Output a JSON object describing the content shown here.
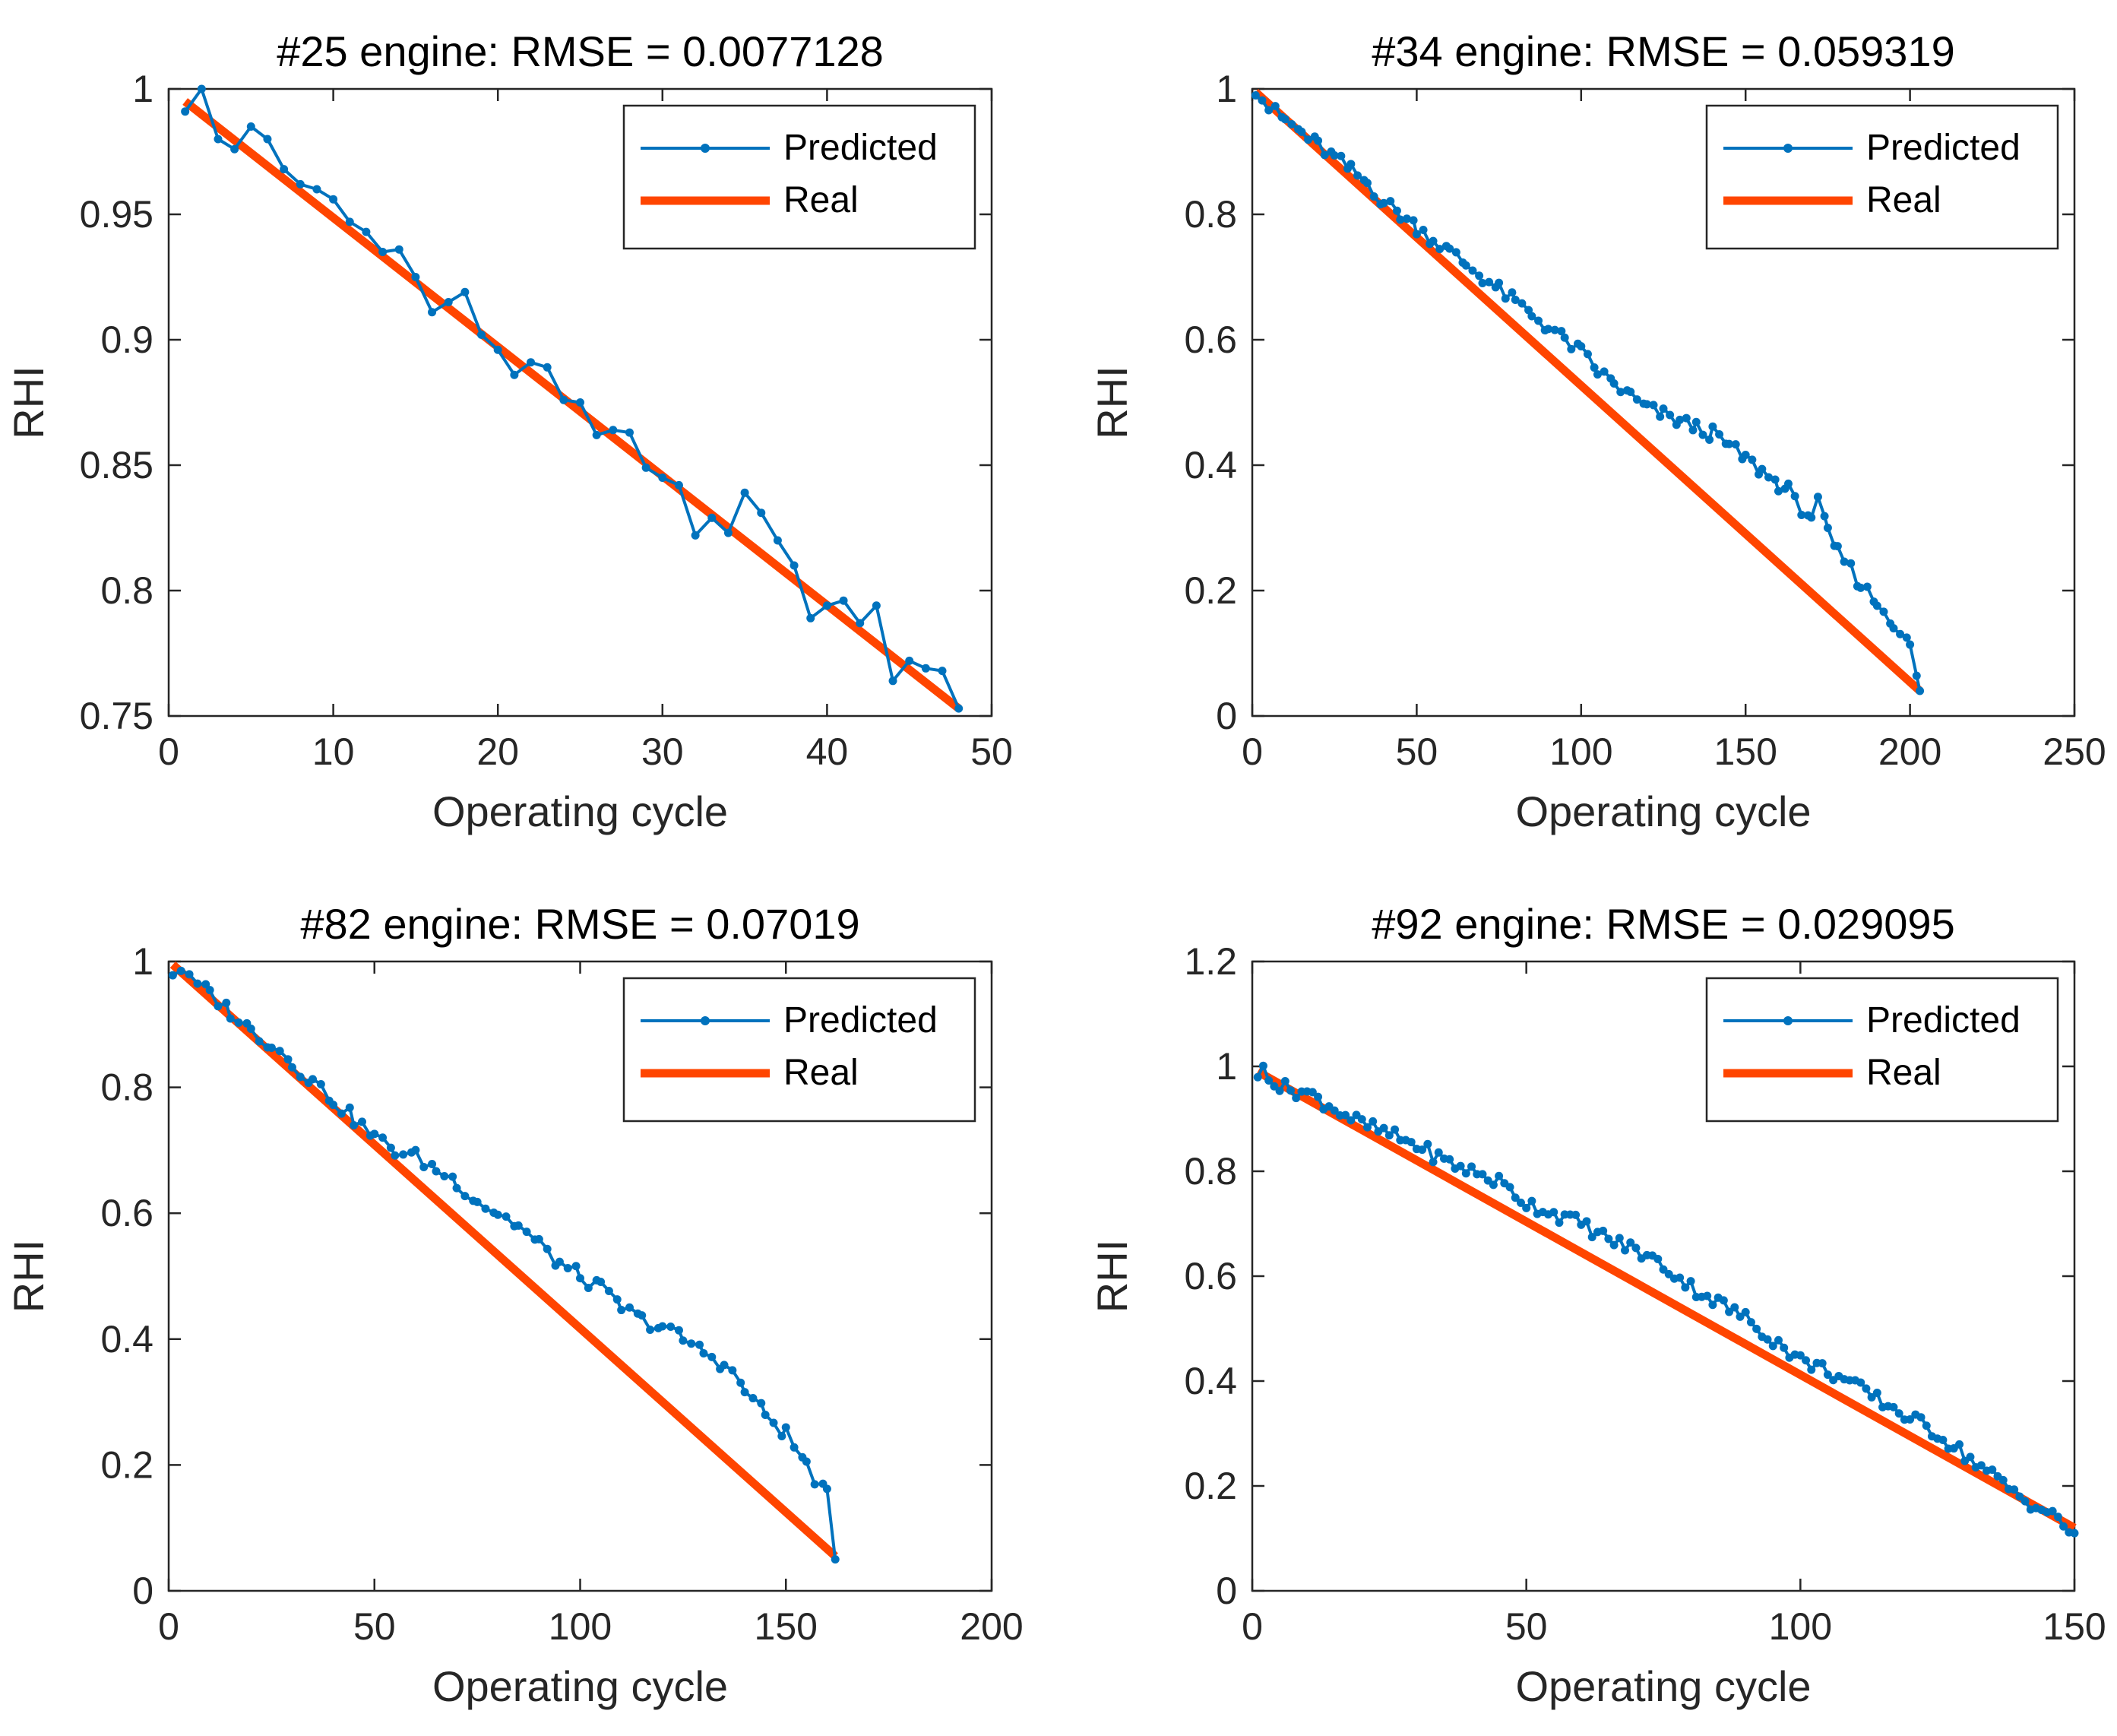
{
  "chart_data": [
    {
      "type": "line",
      "title": "#25 engine: RMSE = 0.0077128",
      "xlabel": "Operating cycle",
      "ylabel": "RHI",
      "xlim": [
        0,
        50
      ],
      "ylim": [
        0.75,
        1
      ],
      "xticks": [
        "0",
        "10",
        "20",
        "30",
        "40",
        "50"
      ],
      "xtick_values": [
        0,
        10,
        20,
        30,
        40,
        50
      ],
      "yticks": [
        "0.75",
        "0.8",
        "0.85",
        "0.9",
        "0.95",
        "1"
      ],
      "ytick_values": [
        0.75,
        0.8,
        0.85,
        0.9,
        0.95,
        1
      ],
      "legend": [
        "Predicted",
        "Real"
      ],
      "legend_position": "top-right",
      "colors": {
        "predicted": "#0072BD",
        "real": "#FF4500"
      },
      "series": [
        {
          "name": "Predicted",
          "x": [
            1,
            2,
            3,
            4,
            5,
            6,
            7,
            8,
            9,
            10,
            11,
            12,
            13,
            14,
            15,
            16,
            17,
            18,
            19,
            20,
            21,
            22,
            23,
            24,
            25,
            26,
            27,
            28,
            29,
            30,
            31,
            32,
            33,
            34,
            35,
            36,
            37,
            38,
            39,
            40,
            41,
            42,
            43,
            44,
            45,
            46,
            47,
            48
          ],
          "y": [
            0.991,
            1.0,
            0.98,
            0.976,
            0.985,
            0.98,
            0.968,
            0.962,
            0.96,
            0.956,
            0.947,
            0.943,
            0.935,
            0.936,
            0.925,
            0.911,
            0.915,
            0.919,
            0.902,
            0.896,
            0.886,
            0.891,
            0.889,
            0.876,
            0.875,
            0.862,
            0.864,
            0.863,
            0.849,
            0.845,
            0.842,
            0.822,
            0.829,
            0.823,
            0.839,
            0.831,
            0.82,
            0.81,
            0.789,
            0.794,
            0.796,
            0.787,
            0.794,
            0.764,
            0.772,
            0.769,
            0.768,
            0.753
          ]
        },
        {
          "name": "Real",
          "x": [
            1,
            48
          ],
          "y": [
            0.995,
            0.753
          ]
        }
      ]
    },
    {
      "type": "line",
      "title": "#34 engine: RMSE = 0.059319",
      "xlabel": "Operating cycle",
      "ylabel": "RHI",
      "xlim": [
        0,
        250
      ],
      "ylim": [
        0,
        1
      ],
      "xticks": [
        "0",
        "50",
        "100",
        "150",
        "200",
        "250"
      ],
      "xtick_values": [
        0,
        50,
        100,
        150,
        200,
        250
      ],
      "yticks": [
        "0",
        "0.2",
        "0.4",
        "0.6",
        "0.8",
        "1"
      ],
      "ytick_values": [
        0,
        0.2,
        0.4,
        0.6,
        0.8,
        1
      ],
      "legend": [
        "Predicted",
        "Real"
      ],
      "legend_position": "top-right",
      "colors": {
        "predicted": "#0072BD",
        "real": "#FF4500"
      },
      "series": [
        {
          "name": "Predicted",
          "step": 2,
          "x": [
            1,
            5,
            10,
            15,
            20,
            25,
            30,
            35,
            40,
            45,
            50,
            55,
            60,
            65,
            70,
            75,
            80,
            85,
            90,
            95,
            100,
            105,
            110,
            115,
            120,
            125,
            130,
            135,
            140,
            145,
            150,
            155,
            160,
            163,
            165,
            170,
            172,
            175,
            178,
            180,
            185,
            190,
            195,
            200,
            203
          ],
          "y": [
            1.0,
            0.97,
            0.95,
            0.93,
            0.91,
            0.89,
            0.87,
            0.85,
            0.82,
            0.8,
            0.78,
            0.76,
            0.74,
            0.72,
            0.7,
            0.68,
            0.66,
            0.64,
            0.62,
            0.6,
            0.58,
            0.55,
            0.53,
            0.51,
            0.49,
            0.48,
            0.47,
            0.46,
            0.45,
            0.43,
            0.41,
            0.39,
            0.37,
            0.36,
            0.34,
            0.32,
            0.34,
            0.29,
            0.26,
            0.25,
            0.21,
            0.18,
            0.15,
            0.11,
            0.04
          ]
        },
        {
          "name": "Real",
          "x": [
            1,
            203
          ],
          "y": [
            0.995,
            0.04
          ]
        }
      ]
    },
    {
      "type": "line",
      "title": "#82 engine: RMSE = 0.07019",
      "xlabel": "Operating cycle",
      "ylabel": "RHI",
      "xlim": [
        0,
        200
      ],
      "ylim": [
        0,
        1
      ],
      "xticks": [
        "0",
        "50",
        "100",
        "150",
        "200"
      ],
      "xtick_values": [
        0,
        50,
        100,
        150,
        200
      ],
      "yticks": [
        "0",
        "0.2",
        "0.4",
        "0.6",
        "0.8",
        "1"
      ],
      "ytick_values": [
        0,
        0.2,
        0.4,
        0.6,
        0.8,
        1
      ],
      "legend": [
        "Predicted",
        "Real"
      ],
      "legend_position": "top-right",
      "colors": {
        "predicted": "#0072BD",
        "real": "#FF4500"
      },
      "series": [
        {
          "name": "Predicted",
          "step": 2,
          "x": [
            1,
            3,
            5,
            10,
            15,
            20,
            25,
            30,
            35,
            40,
            45,
            50,
            55,
            60,
            65,
            70,
            75,
            80,
            85,
            90,
            95,
            100,
            105,
            110,
            115,
            120,
            125,
            130,
            135,
            140,
            145,
            150,
            155,
            160,
            162
          ],
          "y": [
            0.98,
            0.99,
            0.97,
            0.95,
            0.92,
            0.89,
            0.87,
            0.84,
            0.81,
            0.78,
            0.75,
            0.72,
            0.7,
            0.69,
            0.67,
            0.65,
            0.62,
            0.6,
            0.58,
            0.55,
            0.52,
            0.5,
            0.48,
            0.45,
            0.43,
            0.42,
            0.4,
            0.38,
            0.36,
            0.32,
            0.28,
            0.25,
            0.2,
            0.15,
            0.05
          ]
        },
        {
          "name": "Real",
          "x": [
            1,
            162
          ],
          "y": [
            0.995,
            0.055
          ]
        }
      ]
    },
    {
      "type": "line",
      "title": "#92 engine: RMSE = 0.029095",
      "xlabel": "Operating cycle",
      "ylabel": "RHI",
      "xlim": [
        0,
        150
      ],
      "ylim": [
        0,
        1.2
      ],
      "xticks": [
        "0",
        "50",
        "100",
        "150"
      ],
      "xtick_values": [
        0,
        50,
        100,
        150
      ],
      "yticks": [
        "0",
        "0.2",
        "0.4",
        "0.6",
        "0.8",
        "1",
        "1.2"
      ],
      "ytick_values": [
        0,
        0.2,
        0.4,
        0.6,
        0.8,
        1,
        1.2
      ],
      "legend": [
        "Predicted",
        "Real"
      ],
      "legend_position": "top-right",
      "colors": {
        "predicted": "#0072BD",
        "real": "#FF4500"
      },
      "series": [
        {
          "name": "Predicted",
          "step": 1,
          "x": [
            1,
            2,
            5,
            10,
            15,
            20,
            25,
            30,
            35,
            40,
            45,
            50,
            55,
            60,
            65,
            70,
            75,
            80,
            85,
            90,
            95,
            100,
            105,
            110,
            115,
            120,
            125,
            130,
            135,
            140,
            145,
            150
          ],
          "y": [
            0.97,
            1.0,
            0.96,
            0.95,
            0.92,
            0.89,
            0.87,
            0.85,
            0.82,
            0.8,
            0.78,
            0.74,
            0.72,
            0.7,
            0.67,
            0.65,
            0.62,
            0.58,
            0.55,
            0.52,
            0.48,
            0.44,
            0.42,
            0.39,
            0.36,
            0.33,
            0.3,
            0.26,
            0.22,
            0.18,
            0.15,
            0.11
          ]
        },
        {
          "name": "Real",
          "x": [
            1,
            150
          ],
          "y": [
            0.99,
            0.12
          ]
        }
      ]
    }
  ]
}
